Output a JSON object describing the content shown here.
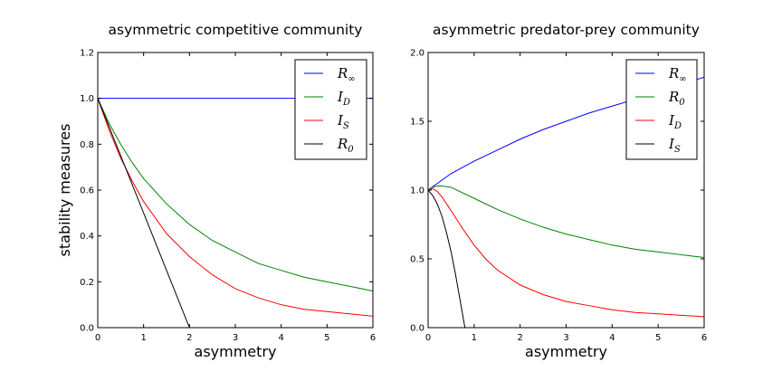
{
  "chart_data": [
    {
      "type": "line",
      "title": "asymmetric competitive community",
      "xlabel": "asymmetry",
      "ylabel": "stability measures",
      "xlim": [
        0,
        6
      ],
      "ylim": [
        0,
        1.2
      ],
      "x_ticks": [
        "0",
        "1",
        "2",
        "3",
        "4",
        "5",
        "6"
      ],
      "y_ticks": [
        "0.0",
        "0.2",
        "0.4",
        "0.6",
        "0.8",
        "1.0",
        "1.2"
      ],
      "grid": false,
      "legend_position": "top-right",
      "series": [
        {
          "name": "R∞",
          "legend_main": "R",
          "legend_sub": "∞",
          "color": "#0000ff",
          "x": [
            0,
            6
          ],
          "y": [
            1.0,
            1.0
          ]
        },
        {
          "name": "ID",
          "legend_main": "I",
          "legend_sub": "D",
          "color": "#008000",
          "x": [
            0,
            0.25,
            0.5,
            0.75,
            1,
            1.5,
            2,
            2.5,
            3,
            3.5,
            4,
            4.5,
            5,
            5.5,
            6
          ],
          "y": [
            1.0,
            0.89,
            0.8,
            0.72,
            0.65,
            0.54,
            0.45,
            0.38,
            0.33,
            0.28,
            0.25,
            0.22,
            0.2,
            0.18,
            0.16
          ]
        },
        {
          "name": "IS",
          "legend_main": "I",
          "legend_sub": "S",
          "color": "#ff0000",
          "x": [
            0,
            0.25,
            0.5,
            0.75,
            1,
            1.5,
            2,
            2.5,
            3,
            3.5,
            4,
            4.5,
            5,
            5.5,
            6
          ],
          "y": [
            1.0,
            0.86,
            0.74,
            0.64,
            0.55,
            0.41,
            0.31,
            0.23,
            0.17,
            0.13,
            0.1,
            0.08,
            0.07,
            0.06,
            0.05
          ]
        },
        {
          "name": "R0",
          "legend_main": "R",
          "legend_sub": "0",
          "color": "#000000",
          "x": [
            0,
            2
          ],
          "y": [
            1.0,
            0.0
          ]
        }
      ]
    },
    {
      "type": "line",
      "title": "asymmetric predator-prey community",
      "xlabel": "asymmetry",
      "ylabel": "",
      "xlim": [
        0,
        6
      ],
      "ylim": [
        0,
        2.0
      ],
      "x_ticks": [
        "0",
        "1",
        "2",
        "3",
        "4",
        "5",
        "6"
      ],
      "y_ticks": [
        "0.0",
        "0.5",
        "1.0",
        "1.5",
        "2.0"
      ],
      "grid": false,
      "legend_position": "top-right",
      "series": [
        {
          "name": "R∞",
          "legend_main": "R",
          "legend_sub": "∞",
          "color": "#0000ff",
          "x": [
            0,
            0.5,
            1,
            1.5,
            2,
            2.5,
            3,
            3.5,
            4,
            4.5,
            5,
            5.5,
            6
          ],
          "y": [
            1.0,
            1.12,
            1.21,
            1.29,
            1.37,
            1.44,
            1.5,
            1.56,
            1.61,
            1.66,
            1.71,
            1.77,
            1.82
          ]
        },
        {
          "name": "R0",
          "legend_main": "R",
          "legend_sub": "0",
          "color": "#008000",
          "x": [
            0,
            0.1,
            0.2,
            0.3,
            0.5,
            0.75,
            1,
            1.5,
            2,
            2.5,
            3,
            3.5,
            4,
            4.5,
            5,
            5.5,
            6
          ],
          "y": [
            1.0,
            1.02,
            1.03,
            1.03,
            1.02,
            0.98,
            0.94,
            0.86,
            0.79,
            0.73,
            0.68,
            0.64,
            0.6,
            0.57,
            0.55,
            0.53,
            0.51
          ]
        },
        {
          "name": "ID",
          "legend_main": "I",
          "legend_sub": "D",
          "color": "#ff0000",
          "x": [
            0,
            0.1,
            0.2,
            0.3,
            0.5,
            0.75,
            1,
            1.25,
            1.5,
            2,
            2.5,
            3,
            3.5,
            4,
            4.5,
            5,
            5.5,
            6
          ],
          "y": [
            1.0,
            1.01,
            0.99,
            0.95,
            0.85,
            0.72,
            0.6,
            0.5,
            0.42,
            0.31,
            0.24,
            0.19,
            0.16,
            0.13,
            0.11,
            0.1,
            0.09,
            0.08
          ]
        },
        {
          "name": "IS",
          "legend_main": "I",
          "legend_sub": "S",
          "color": "#000000",
          "x": [
            0,
            0.1,
            0.2,
            0.3,
            0.4,
            0.5,
            0.6,
            0.7,
            0.8
          ],
          "y": [
            1.0,
            0.96,
            0.9,
            0.81,
            0.69,
            0.55,
            0.38,
            0.19,
            0.0
          ]
        }
      ]
    }
  ]
}
